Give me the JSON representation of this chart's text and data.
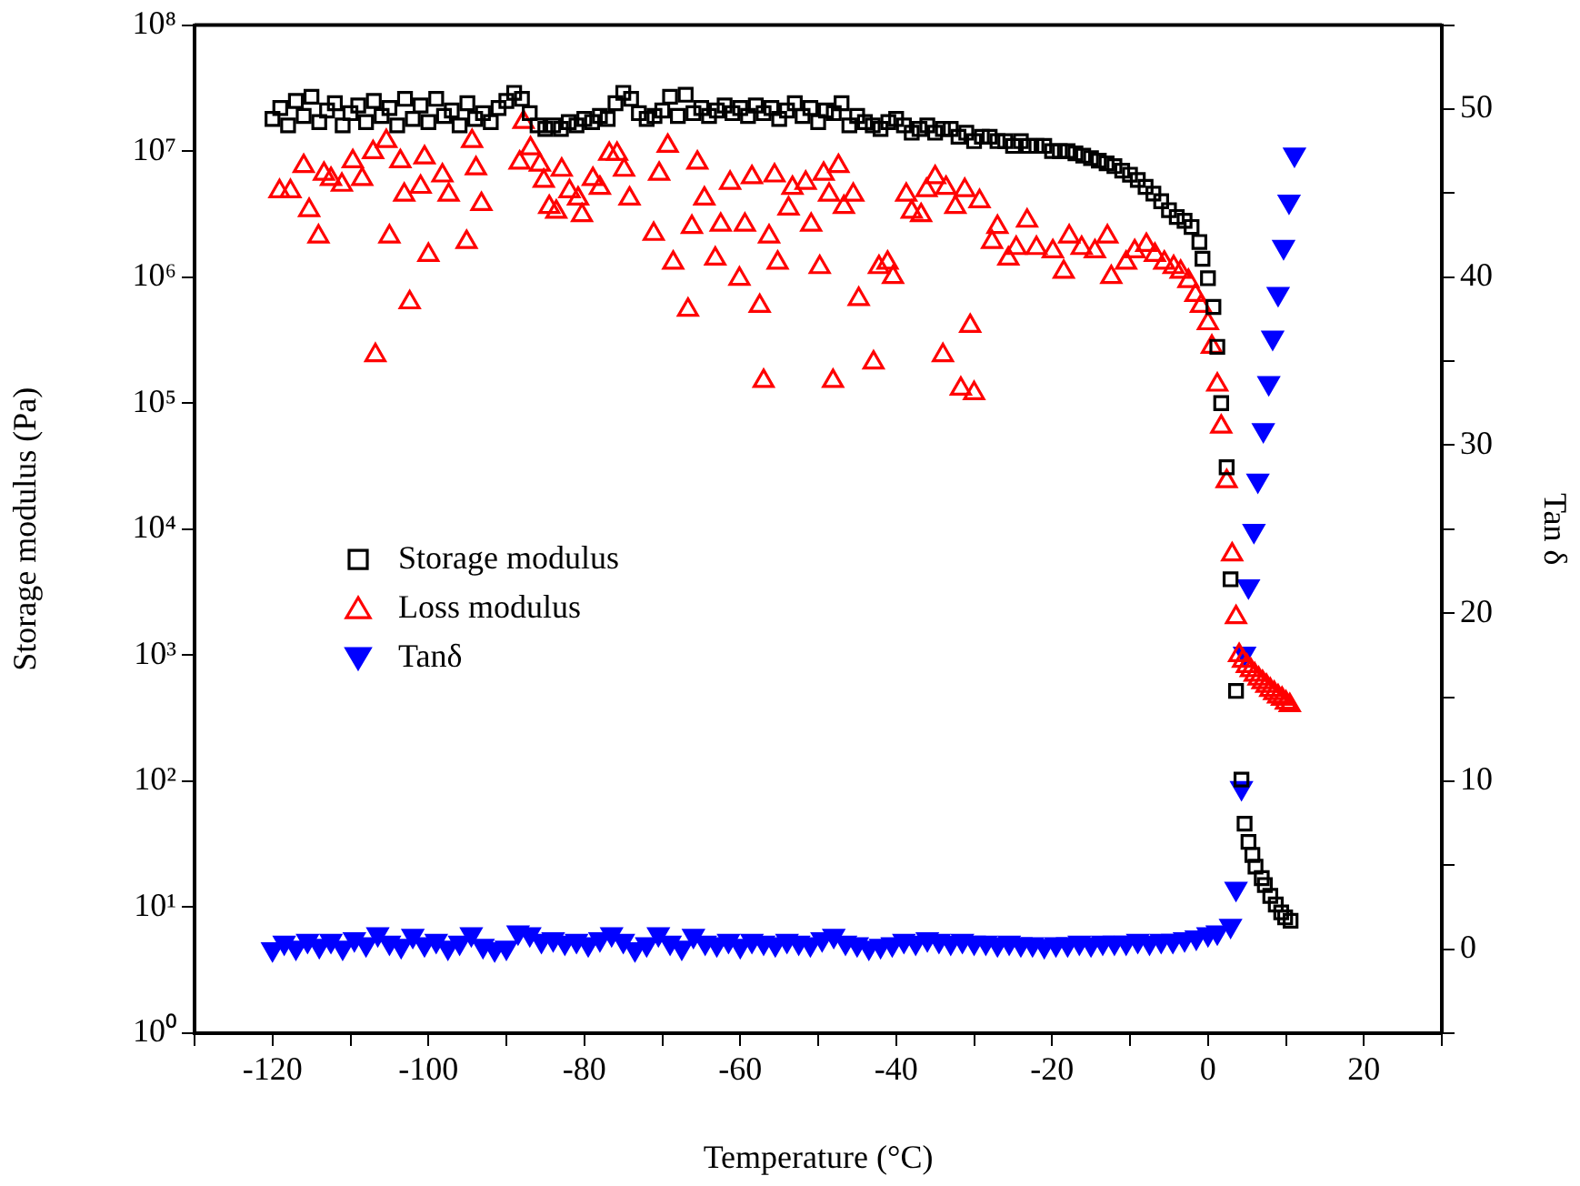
{
  "chart_data": {
    "type": "scatter",
    "xlabel": "Temperature (°C)",
    "ylabel": "Storage modulus (Pa)",
    "y2label": "Tan δ",
    "xlim": [
      -130,
      30
    ],
    "xticks": [
      {
        "value": -130,
        "label": null
      },
      -120,
      {
        "value": -110,
        "label": null
      },
      -100,
      {
        "value": -90,
        "label": null
      },
      -80,
      {
        "value": -70,
        "label": null
      },
      -60,
      {
        "value": -50,
        "label": null
      },
      -40,
      {
        "value": -30,
        "label": null
      },
      -20,
      {
        "value": -10,
        "label": null
      },
      0,
      {
        "value": 10,
        "label": null
      },
      20,
      {
        "value": 30,
        "label": null
      }
    ],
    "ylim": [
      1,
      100000000
    ],
    "log": "y",
    "yticks": [
      {
        "value": 1,
        "label": "10⁰"
      },
      {
        "value": 10,
        "label": "10¹"
      },
      {
        "value": 100,
        "label": "10²"
      },
      {
        "value": 1000,
        "label": "10³"
      },
      {
        "value": 10000,
        "label": "10⁴"
      },
      {
        "value": 100000,
        "label": "10⁵"
      },
      {
        "value": 1000000,
        "label": "10⁶"
      },
      {
        "value": 10000000,
        "label": "10⁷"
      },
      {
        "value": 100000000,
        "label": "10⁸"
      }
    ],
    "y2lim": [
      -5,
      55
    ],
    "y2ticks": [
      {
        "value": -5,
        "label": null
      },
      0,
      {
        "value": 5,
        "label": null
      },
      10,
      {
        "value": 15,
        "label": null
      },
      20,
      {
        "value": 25,
        "label": null
      },
      30,
      {
        "value": 35,
        "label": null
      },
      40,
      {
        "value": 45,
        "label": null
      },
      50,
      {
        "value": 55,
        "label": null
      }
    ],
    "grid": false,
    "legend": "left",
    "series": [
      {
        "name": "Storage modulus",
        "color": "#000000",
        "marker": "square",
        "x": [
          -120,
          -119,
          -118,
          -117,
          -116,
          -115,
          -114,
          -113,
          -112,
          -111,
          -110,
          -109,
          -108,
          -107,
          -106,
          -105,
          -104,
          -103,
          -102,
          -101,
          -100,
          -99,
          -98,
          -97,
          -96,
          -95,
          -94,
          -93,
          -92,
          -91,
          -90,
          -89,
          -88,
          -87,
          -86,
          -85,
          -84,
          -83,
          -82,
          -81,
          -80,
          -79,
          -78,
          -77,
          -76,
          -75,
          -74,
          -73,
          -72,
          -71,
          -70,
          -69,
          -68,
          -67,
          -66,
          -65,
          -64,
          -63,
          -62,
          -61,
          -60,
          -59,
          -58,
          -57,
          -56,
          -55,
          -54,
          -53,
          -52,
          -51,
          -50,
          -49,
          -48,
          -47,
          -46,
          -45,
          -44,
          -43,
          -42,
          -41,
          -40,
          -39,
          -38,
          -37,
          -36,
          -35,
          -34,
          -33,
          -32,
          -31,
          -30,
          -29,
          -28,
          -27,
          -26,
          -25,
          -24,
          -23,
          -22,
          -21,
          -20,
          -19,
          -18,
          -17,
          -16,
          -15,
          -14,
          -13,
          -12,
          -11,
          -10,
          -9,
          -8,
          -7,
          -6,
          -5,
          -4,
          -3,
          -2.1,
          -1.1,
          -0.7,
          0.0,
          0.7,
          1.2,
          1.7,
          2.4,
          2.9,
          3.6,
          4.3,
          4.7,
          5.2,
          5.7,
          6.1,
          6.9,
          7.3,
          8.0,
          8.7,
          9.4,
          9.9,
          10.6
        ],
        "values": [
          18000000.0,
          22000000.0,
          16000000.0,
          25000000.0,
          19000000.0,
          27000000.0,
          17000000.0,
          21000000.0,
          24000000.0,
          16000000.0,
          20000000.0,
          23000000.0,
          17000000.0,
          25000000.0,
          19000000.0,
          22000000.0,
          16000000.0,
          26000000.0,
          18000000.0,
          23000000.0,
          17000000.0,
          26000000.0,
          19000000.0,
          21000000.0,
          16000000.0,
          24000000.0,
          18000000.0,
          20000000.0,
          17000000.0,
          22000000.0,
          25000000.0,
          29000000.0,
          26000000.0,
          20000000.0,
          16000000.0,
          15000000.0,
          16000000.0,
          15000000.0,
          17000000.0,
          16000000.0,
          18000000.0,
          17000000.0,
          19000000.0,
          18000000.0,
          24000000.0,
          29000000.0,
          26000000.0,
          20000000.0,
          18000000.0,
          19000000.0,
          21000000.0,
          27000000.0,
          19000000.0,
          28000000.0,
          20000000.0,
          22000000.0,
          19000000.0,
          21000000.0,
          23000000.0,
          20000000.0,
          22000000.0,
          19000000.0,
          23000000.0,
          20000000.0,
          22000000.0,
          18000000.0,
          21000000.0,
          24000000.0,
          19000000.0,
          22000000.0,
          17000000.0,
          21000000.0,
          20000000.0,
          24000000.0,
          16000000.0,
          19000000.0,
          17000000.0,
          16000000.0,
          15000000.0,
          17000000.0,
          18000000.0,
          16000000.0,
          14000000.0,
          15000000.0,
          16000000.0,
          14000000.0,
          15000000.0,
          15000000.0,
          13000000.0,
          14000000.0,
          12000000.0,
          13000000.0,
          13000000.0,
          12000000.0,
          12000000.0,
          11000000.0,
          12000000.0,
          11000000.0,
          11000000.0,
          11000000.0,
          10000000.0,
          10000000.0,
          10000000.0,
          9600000.0,
          9200000.0,
          8800000.0,
          8400000.0,
          8000000.0,
          7600000.0,
          7000000.0,
          6500000.0,
          5900000.0,
          5200000.0,
          4600000.0,
          4000000.0,
          3400000.0,
          3000000.0,
          2800000.0,
          2500000.0,
          1900000.0,
          1400000.0,
          980000.0,
          580000.0,
          280000.0,
          100000.0,
          31000.0,
          4000.0,
          520,
          103,
          46,
          33,
          26,
          21,
          17,
          15,
          12.3,
          10.5,
          9.1,
          8.3,
          7.8
        ]
      },
      {
        "name": "Loss modulus",
        "color": "#ff0000",
        "marker": "triangle",
        "x": [
          -119.1,
          -117.7,
          -116.0,
          -115.3,
          -114.1,
          -113.4,
          -112.5,
          -111.1,
          -109.7,
          -108.5,
          -107.1,
          -106.8,
          -105.4,
          -105.0,
          -103.6,
          -103.1,
          -102.4,
          -101.0,
          -100.5,
          -100.0,
          -98.2,
          -97.4,
          -95.1,
          -94.4,
          -93.9,
          -93.2,
          -88.3,
          -87.8,
          -86.9,
          -85.7,
          -85.2,
          -84.5,
          -83.6,
          -82.9,
          -81.9,
          -80.8,
          -80.3,
          -78.9,
          -78.0,
          -76.8,
          -75.8,
          -74.9,
          -74.2,
          -71.1,
          -70.4,
          -69.3,
          -68.6,
          -66.7,
          -66.2,
          -65.5,
          -64.6,
          -63.2,
          -62.5,
          -61.3,
          -60.1,
          -59.4,
          -58.5,
          -57.5,
          -57.0,
          -56.3,
          -55.6,
          -55.2,
          -53.8,
          -53.3,
          -51.6,
          -50.9,
          -49.8,
          -49.3,
          -48.6,
          -48.1,
          -47.4,
          -46.7,
          -45.5,
          -44.8,
          -42.9,
          -42.2,
          -41.1,
          -40.4,
          -38.7,
          -38.0,
          -36.8,
          -36.1,
          -35.0,
          -34.0,
          -33.6,
          -32.4,
          -31.7,
          -31.2,
          -30.5,
          -30.0,
          -29.3,
          -27.7,
          -27.0,
          -25.6,
          -24.6,
          -23.2,
          -22.0,
          -19.9,
          -18.5,
          -17.8,
          -16.2,
          -14.5,
          -12.9,
          -12.4,
          -10.5,
          -9.4,
          -7.9,
          -6.8,
          -5.6,
          -4.4,
          -3.5,
          -2.5,
          -1.6,
          -0.9,
          0.0,
          0.5,
          1.2,
          1.7,
          2.4,
          3.1,
          3.6,
          4.0,
          4.5,
          5.0,
          5.5,
          6.0,
          6.5,
          7.0,
          7.5,
          8.0,
          8.5,
          9.0,
          9.5,
          10.0,
          10.5
        ],
        "values": [
          4800000.0,
          4800000.0,
          7600000.0,
          3400000.0,
          2100000.0,
          6600000.0,
          6000000.0,
          5400000.0,
          8300000.0,
          6000000.0,
          9800000.0,
          240000.0,
          12000000.0,
          2100000.0,
          8300000.0,
          4500000.0,
          630000.0,
          5200000.0,
          8900000.0,
          1500000.0,
          6400000.0,
          4500000.0,
          1900000.0,
          12000000.0,
          7300000.0,
          3800000.0,
          8100000.0,
          17000000.0,
          10500000.0,
          7800000.0,
          5800000.0,
          3600000.0,
          3300000.0,
          7100000.0,
          4800000.0,
          4200000.0,
          3100000.0,
          6000000.0,
          5100000.0,
          9500000.0,
          9500000.0,
          7100000.0,
          4200000.0,
          2200000.0,
          6600000.0,
          11000000.0,
          1300000.0,
          550000.0,
          2500000.0,
          8100000.0,
          4200000.0,
          1400000.0,
          2600000.0,
          5600000.0,
          970000.0,
          2600000.0,
          6200000.0,
          590000.0,
          150000.0,
          2100000.0,
          6400000.0,
          1300000.0,
          3500000.0,
          5100000.0,
          5600000.0,
          2600000.0,
          1200000.0,
          6600000.0,
          4500000.0,
          150000.0,
          7600000.0,
          3600000.0,
          4500000.0,
          670000.0,
          210000.0,
          1200000.0,
          1300000.0,
          1000000.0,
          4500000.0,
          3300000.0,
          3100000.0,
          4900000.0,
          6200000.0,
          240000.0,
          5100000.0,
          3600000.0,
          130000.0,
          4900000.0,
          410000.0,
          120000.0,
          4000000.0,
          1900000.0,
          2500000.0,
          1400000.0,
          1700000.0,
          2800000.0,
          1700000.0,
          1600000.0,
          1100000.0,
          2100000.0,
          1700000.0,
          1600000.0,
          2100000.0,
          1000000.0,
          1300000.0,
          1600000.0,
          1800000.0,
          1500000.0,
          1300000.0,
          1200000.0,
          1100000.0,
          930000.0,
          720000.0,
          590000.0,
          430000.0,
          280000.0,
          140000.0,
          65000.0,
          24000.0,
          6300.0,
          2000.0,
          1000,
          900,
          820,
          760,
          700,
          650,
          610,
          570,
          530,
          500,
          470,
          450,
          420,
          400
        ]
      },
      {
        "name": "Tanδ",
        "color": "#0000ff",
        "marker": "triangle",
        "axis": "y2",
        "x": [
          -120,
          -118.5,
          -117,
          -115.5,
          -114,
          -112.5,
          -111,
          -109.5,
          -108,
          -106.5,
          -105,
          -103.5,
          -102,
          -100.5,
          -99,
          -97.5,
          -96,
          -94.5,
          -93,
          -91.5,
          -90,
          -88.5,
          -87,
          -85.5,
          -84,
          -82.5,
          -81,
          -79.5,
          -78,
          -76.5,
          -75,
          -73.5,
          -72,
          -70.5,
          -69,
          -67.5,
          -66,
          -64.5,
          -63,
          -61.5,
          -60,
          -58.5,
          -57,
          -55.5,
          -54,
          -52.5,
          -51,
          -49.5,
          -48,
          -46.5,
          -45,
          -43.5,
          -42,
          -40.5,
          -39,
          -37.5,
          -36,
          -34.5,
          -33,
          -31.5,
          -30,
          -28.5,
          -27,
          -25.5,
          -24,
          -22.5,
          -21,
          -19.5,
          -18,
          -16.5,
          -15,
          -13.5,
          -12,
          -10.5,
          -9,
          -7.5,
          -6,
          -4.5,
          -3,
          -1.5,
          0,
          1.2,
          2.9,
          3.6,
          4.3,
          4.7,
          5.2,
          5.9,
          6.4,
          7.1,
          7.8,
          8.3,
          9.0,
          9.7,
          10.4,
          11.1
        ],
        "values": [
          0.0,
          0.4,
          0.1,
          0.5,
          0.2,
          0.5,
          0.1,
          0.6,
          0.3,
          0.9,
          0.4,
          0.2,
          0.8,
          0.3,
          0.5,
          0.1,
          0.4,
          0.9,
          0.2,
          0.0,
          0.1,
          1.0,
          0.9,
          0.5,
          0.6,
          0.4,
          0.5,
          0.3,
          0.6,
          0.9,
          0.5,
          0.0,
          0.3,
          0.9,
          0.4,
          0.1,
          0.8,
          0.4,
          0.3,
          0.5,
          0.2,
          0.5,
          0.4,
          0.3,
          0.5,
          0.4,
          0.3,
          0.6,
          0.8,
          0.4,
          0.3,
          0.1,
          0.2,
          0.3,
          0.5,
          0.4,
          0.6,
          0.5,
          0.4,
          0.5,
          0.4,
          0.4,
          0.3,
          0.4,
          0.3,
          0.3,
          0.2,
          0.3,
          0.3,
          0.4,
          0.3,
          0.4,
          0.4,
          0.4,
          0.5,
          0.4,
          0.5,
          0.5,
          0.6,
          0.7,
          0.9,
          1.0,
          1.4,
          3.6,
          9.6,
          17.6,
          21.6,
          24.9,
          27.9,
          30.9,
          33.7,
          36.4,
          39.0,
          41.8,
          44.5,
          47.3
        ]
      }
    ]
  }
}
